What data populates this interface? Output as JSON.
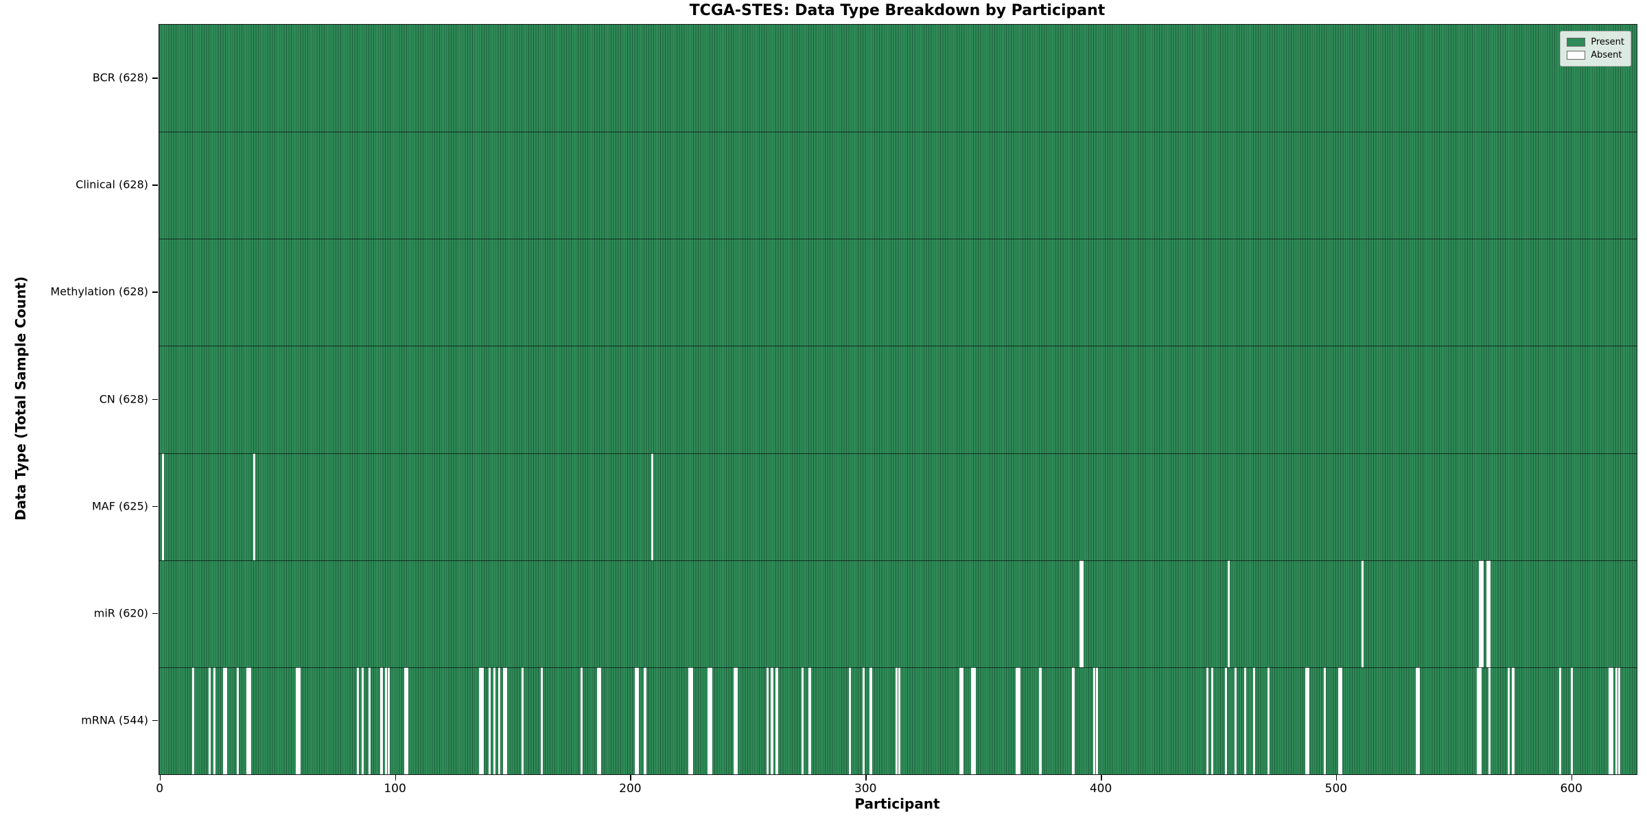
{
  "figure": {
    "title": "TCGA-STES: Data Type Breakdown by Participant",
    "xlabel": "Participant",
    "ylabel": "Data Type (Total Sample Count)"
  },
  "legend": {
    "items": [
      {
        "label": "Present",
        "color": "#2e8b57"
      },
      {
        "label": "Absent",
        "color": "#ffffff"
      }
    ]
  },
  "chart_data": {
    "type": "heatmap",
    "title": "TCGA-STES: Data Type Breakdown by Participant",
    "xlabel": "Participant",
    "ylabel": "Data Type (Total Sample Count)",
    "n_participants": 628,
    "x_ticks": [
      0,
      100,
      200,
      300,
      400,
      500,
      600
    ],
    "xlim": [
      0,
      628
    ],
    "grid": false,
    "legend_position": "upper right",
    "present_color": "#2e8b57",
    "bar_edge_color": "#1f5c3b",
    "absent_color": "#ffffff",
    "rows": [
      {
        "label": "BCR",
        "total": 628,
        "ytick_label": "BCR (628)",
        "absent_participants": []
      },
      {
        "label": "Clinical",
        "total": 628,
        "ytick_label": "Clinical (628)",
        "absent_participants": []
      },
      {
        "label": "Methylation",
        "total": 628,
        "ytick_label": "Methylation (628)",
        "absent_participants": []
      },
      {
        "label": "CN",
        "total": 628,
        "ytick_label": "CN (628)",
        "absent_participants": []
      },
      {
        "label": "MAF",
        "total": 625,
        "ytick_label": "MAF (625)",
        "absent_participants": [
          1,
          40,
          209
        ]
      },
      {
        "label": "miR",
        "total": 620,
        "ytick_label": "miR (620)",
        "absent_participants": [
          391,
          392,
          454,
          511,
          561,
          562,
          564,
          565
        ]
      },
      {
        "label": "mRNA",
        "total": 544,
        "ytick_label": "mRNA (544)",
        "absent_participants": [
          14,
          21,
          23,
          27,
          28,
          33,
          37,
          38,
          58,
          59,
          84,
          86,
          89,
          94,
          96,
          97,
          104,
          105,
          136,
          137,
          140,
          142,
          144,
          146,
          147,
          154,
          162,
          179,
          186,
          187,
          202,
          203,
          206,
          225,
          226,
          233,
          234,
          244,
          245,
          258,
          260,
          262,
          273,
          276,
          293,
          299,
          302,
          313,
          314,
          340,
          341,
          345,
          346,
          364,
          365,
          374,
          388,
          397,
          398,
          445,
          447,
          453,
          457,
          461,
          465,
          471,
          487,
          488,
          495,
          501,
          502,
          534,
          535,
          560,
          561,
          565,
          573,
          575,
          595,
          600,
          616,
          617,
          619,
          620
        ]
      }
    ]
  }
}
